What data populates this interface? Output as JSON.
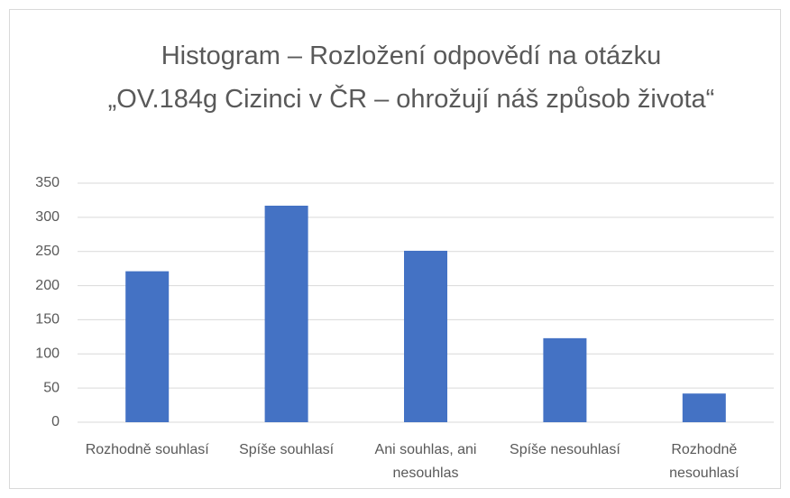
{
  "chart_data": {
    "type": "bar",
    "title": "Histogram – Rozložení odpovědí na otázku „OV.184g Cizinci v ČR – ohrožují náš způsob života“",
    "categories": [
      "Rozhodně souhlasí",
      "Spíše souhlasí",
      "Ani souhlas, ani nesouhlas",
      "Spíše nesouhlasí",
      "Rozhodně nesouhlasí"
    ],
    "values": [
      221,
      317,
      251,
      123,
      42
    ],
    "color": "#4472c4",
    "ylim": [
      0,
      350
    ],
    "yticks": [
      0,
      50,
      100,
      150,
      200,
      250,
      300,
      350
    ],
    "grid": true
  }
}
